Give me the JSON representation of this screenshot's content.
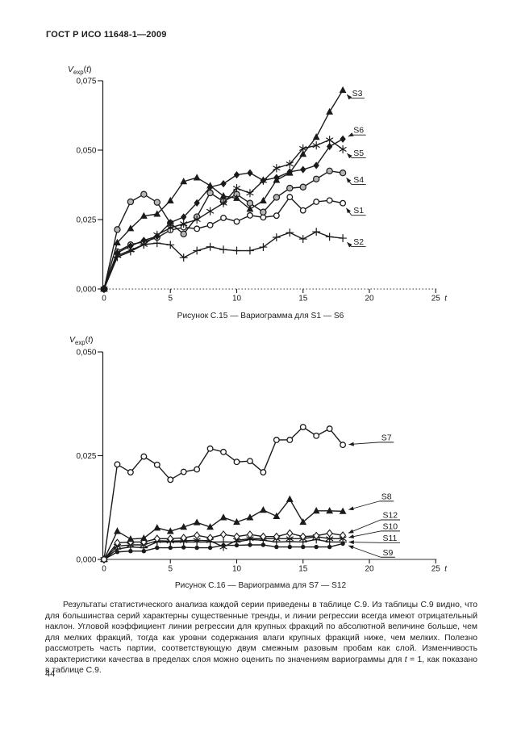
{
  "page": {
    "header": "ГОСТ Р ИСО 11648-1—2009",
    "page_number": "44"
  },
  "colors": {
    "ink": "#1a1a1a",
    "shaded_marker_fill": "#b5b5b5",
    "paper": "#ffffff"
  },
  "paragraph": {
    "before": "Результаты статистического анализа каждой серии приведены в таблице С.9. Из таблицы С.9 видно, что для большинства серий характерны существенные тренды, и линии регрессии всегда имеют отрицательный наклон. Угловой коэффициент линии регрессии для крупных фракций по абсолютной величине больше, чем для мелких фракций, тогда как уровни содержания влаги крупных фракций ниже, чем мелких. Полезно рассмотреть часть партии, соответствующую двум смежным разовым пробам как слой. Изменчивость характеристики качества в пределах слоя можно оценить по значениям вариограммы для ",
    "var": "t",
    "after": " = 1, как показано в таблице С.9."
  },
  "chart_data": [
    {
      "type": "line",
      "title": "Рисунок С.15 — Вариограмма для S1 — S6",
      "ylabel": "Vexp(t)",
      "ylabel_parts": {
        "base": "V",
        "sub": "exp",
        "open": "(",
        "var": "t",
        "close": ")"
      },
      "xlabel": "t",
      "xlim": [
        0,
        25
      ],
      "ylim": [
        0,
        0.075
      ],
      "xticks": [
        0,
        5,
        10,
        15,
        20,
        25
      ],
      "yticks": [
        0,
        0.025,
        0.05,
        0.075
      ],
      "ytick_labels": [
        "0,000",
        "0,025",
        "0,050",
        "0,075"
      ],
      "grid": false,
      "legend": "right-callouts",
      "x": [
        0,
        1,
        2,
        3,
        4,
        5,
        6,
        7,
        8,
        9,
        10,
        11,
        12,
        13,
        14,
        15,
        16,
        17,
        18
      ],
      "series": [
        {
          "name": "S3",
          "marker": "filled-triangle",
          "label_at": {
            "t": 18.7,
            "v": 0.0705
          },
          "values": [
            0,
            0.0167,
            0.0218,
            0.0263,
            0.027,
            0.0318,
            0.0387,
            0.0401,
            0.0372,
            0.0335,
            0.0327,
            0.0288,
            0.0318,
            0.0392,
            0.0418,
            0.0486,
            0.0547,
            0.0638,
            0.0716
          ]
        },
        {
          "name": "S6",
          "marker": "filled-diamond",
          "label_at": {
            "t": 18.8,
            "v": 0.0572
          },
          "values": [
            0,
            0.013,
            0.0155,
            0.0175,
            0.019,
            0.0239,
            0.0259,
            0.031,
            0.0367,
            0.0379,
            0.0411,
            0.0418,
            0.0391,
            0.0401,
            0.0422,
            0.043,
            0.0445,
            0.0513,
            0.054
          ]
        },
        {
          "name": "S5",
          "marker": "asterisk",
          "label_at": {
            "t": 18.8,
            "v": 0.049
          },
          "values": [
            0,
            0.012,
            0.014,
            0.016,
            0.0195,
            0.022,
            0.0235,
            0.025,
            0.028,
            0.0309,
            0.0363,
            0.0345,
            0.039,
            0.0435,
            0.045,
            0.0506,
            0.0517,
            0.0537,
            0.0503
          ]
        },
        {
          "name": "S4",
          "marker": "shaded-circle",
          "label_at": {
            "t": 18.8,
            "v": 0.0394
          },
          "values": [
            0,
            0.0214,
            0.0314,
            0.0341,
            0.0312,
            0.0237,
            0.0198,
            0.026,
            0.0346,
            0.0315,
            0.0341,
            0.0309,
            0.0277,
            0.033,
            0.0363,
            0.0367,
            0.0396,
            0.0425,
            0.0418
          ]
        },
        {
          "name": "S1",
          "marker": "open-circle",
          "label_at": {
            "t": 18.8,
            "v": 0.0283
          },
          "values": [
            0,
            0.0135,
            0.016,
            0.017,
            0.0185,
            0.0212,
            0.0222,
            0.0217,
            0.023,
            0.0256,
            0.0243,
            0.0265,
            0.0258,
            0.0264,
            0.0331,
            0.0283,
            0.0314,
            0.0319,
            0.0309
          ]
        },
        {
          "name": "S2",
          "marker": "plus",
          "label_at": {
            "t": 18.8,
            "v": 0.017
          },
          "values": [
            0,
            0.0115,
            0.0135,
            0.016,
            0.0165,
            0.0159,
            0.0113,
            0.0138,
            0.0152,
            0.0142,
            0.0138,
            0.0138,
            0.0151,
            0.0186,
            0.0203,
            0.018,
            0.0206,
            0.0188,
            0.0183
          ]
        }
      ]
    },
    {
      "type": "line",
      "title": "Рисунок С.16 — Вариограмма для S7 — S12",
      "ylabel": "Vexp(t)",
      "ylabel_parts": {
        "base": "V",
        "sub": "exp",
        "open": "(",
        "var": "t",
        "close": ")"
      },
      "xlabel": "t",
      "xlim": [
        0,
        25
      ],
      "ylim": [
        0,
        0.05
      ],
      "xticks": [
        0,
        5,
        10,
        15,
        20,
        25
      ],
      "yticks": [
        0,
        0.025,
        0.05
      ],
      "ytick_labels": [
        "0,000",
        "0,025",
        "0,050"
      ],
      "grid": false,
      "legend": "right-callouts",
      "x": [
        0,
        1,
        2,
        3,
        4,
        5,
        6,
        7,
        8,
        9,
        10,
        11,
        12,
        13,
        14,
        15,
        16,
        17,
        18
      ],
      "series": [
        {
          "name": "S7",
          "marker": "open-circle",
          "label_at": {
            "t": 20.9,
            "v": 0.0294
          },
          "values": [
            0,
            0.0229,
            0.021,
            0.0248,
            0.0228,
            0.0192,
            0.0211,
            0.0217,
            0.0267,
            0.0259,
            0.0235,
            0.0237,
            0.021,
            0.0288,
            0.0288,
            0.0319,
            0.0298,
            0.0315,
            0.0276
          ]
        },
        {
          "name": "S8",
          "marker": "filled-triangle",
          "label_at": {
            "t": 20.9,
            "v": 0.0152
          },
          "values": [
            0,
            0.0068,
            0.0049,
            0.0051,
            0.0076,
            0.0068,
            0.0078,
            0.0089,
            0.0078,
            0.0101,
            0.009,
            0.0101,
            0.0119,
            0.0104,
            0.0145,
            0.009,
            0.0117,
            0.0117,
            0.0116
          ]
        },
        {
          "name": "S12",
          "marker": "open-diamond",
          "label_at": {
            "t": 21.0,
            "v": 0.0107
          },
          "values": [
            0,
            0.004,
            0.0042,
            0.0042,
            0.005,
            0.005,
            0.0052,
            0.0058,
            0.0052,
            0.006,
            0.0055,
            0.006,
            0.0055,
            0.0055,
            0.0063,
            0.0055,
            0.0057,
            0.0063,
            0.0058
          ]
        },
        {
          "name": "S10",
          "marker": "asterisk",
          "label_at": {
            "t": 21.0,
            "v": 0.008
          },
          "values": [
            0,
            0.0032,
            0.0035,
            0.0035,
            0.0045,
            0.0044,
            0.0045,
            0.0046,
            0.0045,
            0.003,
            0.0046,
            0.005,
            0.005,
            0.005,
            0.005,
            0.005,
            0.0055,
            0.005,
            0.005
          ]
        },
        {
          "name": "S11",
          "marker": "plus",
          "label_at": {
            "t": 21.0,
            "v": 0.0052
          },
          "values": [
            0,
            0.0025,
            0.003,
            0.0028,
            0.0042,
            0.0042,
            0.0042,
            0.0042,
            0.0042,
            0.0042,
            0.0042,
            0.0048,
            0.0046,
            0.0042,
            0.0043,
            0.0042,
            0.0048,
            0.0042,
            0.0042
          ]
        },
        {
          "name": "S9",
          "marker": "filled-circle",
          "label_at": {
            "t": 21.0,
            "v": 0.0017
          },
          "values": [
            0,
            0.0018,
            0.002,
            0.002,
            0.0028,
            0.0028,
            0.0029,
            0.0028,
            0.0028,
            0.0034,
            0.0034,
            0.0035,
            0.0035,
            0.003,
            0.003,
            0.003,
            0.003,
            0.003,
            0.0038
          ]
        }
      ]
    }
  ]
}
